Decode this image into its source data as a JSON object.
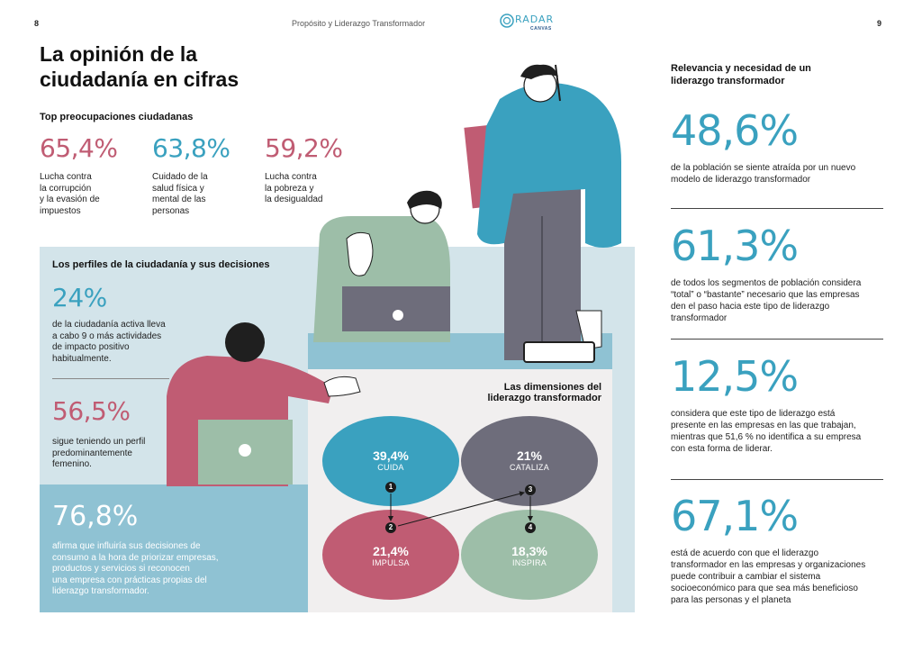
{
  "header": {
    "page_left": "8",
    "page_right": "9",
    "section_title": "Propósito y Liderazgo Transformador",
    "logo_main": "RADAR",
    "logo_sub": "CANVAS"
  },
  "title_line1": "La opinión de la",
  "title_line2": "ciudadanía en cifras",
  "concerns": {
    "heading": "Top preocupaciones ciudadanas",
    "items": [
      {
        "value": "65,4%",
        "lines": [
          "Lucha contra",
          "la corrupción",
          "y la evasión de",
          "impuestos"
        ]
      },
      {
        "value": "63,8%",
        "lines": [
          "Cuidado de la",
          "salud física y",
          "mental de las",
          "personas"
        ]
      },
      {
        "value": "59,2%",
        "lines": [
          "Lucha contra",
          "la pobreza y",
          "la desigualdad"
        ]
      }
    ]
  },
  "profiles": {
    "heading": "Los perfiles de la ciudadanía y sus decisiones",
    "items": [
      {
        "value": "24%",
        "lines": [
          "de la ciudadanía activa lleva",
          "a cabo 9 o más actividades",
          "de impacto positivo",
          "habitualmente."
        ]
      },
      {
        "value": "56,5%",
        "lines": [
          "sigue teniendo un perfil",
          "predominantemente",
          "femenino."
        ]
      },
      {
        "value": "76,8%",
        "lines": [
          "afirma que influiría sus decisiones de",
          "consumo a la hora de priorizar empresas,",
          "productos y servicios si reconocen",
          "una empresa con prácticas propias del",
          "liderazgo transformador."
        ]
      }
    ]
  },
  "dimensions": {
    "heading_line1": "Las dimensiones del",
    "heading_line2": "liderazgo transformador",
    "bubbles": [
      {
        "pct": "39,4%",
        "label": "CUIDA",
        "color": "#3aa1bf"
      },
      {
        "pct": "21%",
        "label": "CATALIZA",
        "color": "#6e6d7b"
      },
      {
        "pct": "21,4%",
        "label": "IMPULSA",
        "color": "#c05c73"
      },
      {
        "pct": "18,3%",
        "label": "INSPIRA",
        "color": "#9dbea8"
      }
    ],
    "steps": [
      "1",
      "2",
      "3",
      "4"
    ]
  },
  "relevance": {
    "heading_line1": "Relevancia y necesidad de un",
    "heading_line2": "liderazgo transformador",
    "items": [
      {
        "value": "48,6%",
        "lines": [
          "de la población se siente atraída por un nuevo",
          "modelo de liderazgo transformador"
        ]
      },
      {
        "value": "61,3%",
        "lines": [
          "de todos los segmentos de población considera",
          "“total” o “bastante” necesario que las empresas",
          "den el paso hacia este tipo de liderazgo",
          "transformador"
        ]
      },
      {
        "value": "12,5%",
        "lines": [
          "considera que este tipo de liderazgo está",
          "presente en las empresas en las que trabajan,",
          "mientras que 51,6 % no identifica a su empresa",
          "con esta forma de liderar."
        ]
      },
      {
        "value": "67,1%",
        "lines": [
          "está de acuerdo con que el liderazgo",
          "transformador en las empresas y organizaciones",
          "puede contribuir a cambiar el sistema",
          "socioeconómico para que sea más beneficioso",
          "para las personas y el planeta"
        ]
      }
    ]
  },
  "colors": {
    "pink": "#c05c73",
    "blue": "#3aa1bf",
    "light_blue_panel": "#d3e4ea",
    "mid_blue_panel": "#8fc2d3",
    "grey": "#6e6d7b",
    "sage": "#9dbea8"
  },
  "illustration": "people-working-illustration"
}
